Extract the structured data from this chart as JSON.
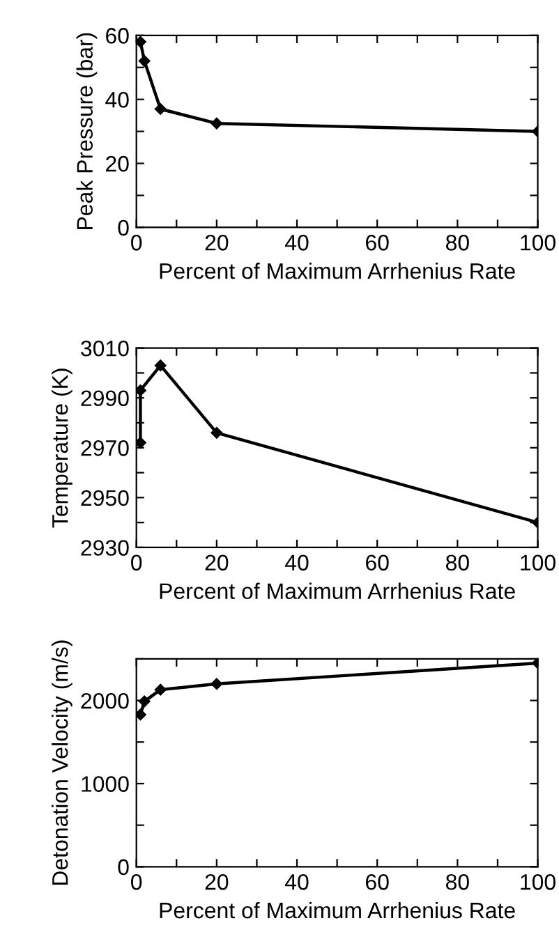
{
  "chart_data": [
    {
      "type": "line",
      "ylabel": "Peak Pressure (bar)",
      "xlabel": "Percent of Maximum Arrhenius Rate",
      "marker": "diamond",
      "line_style": "solid",
      "grid": false,
      "series": [
        {
          "color": "#000000",
          "x": [
            1,
            2,
            6,
            20,
            100
          ],
          "values": [
            58,
            52,
            37,
            32.5,
            30
          ]
        }
      ],
      "xlim": [
        0,
        100
      ],
      "xticks": [
        0,
        {
          "value": 10,
          "label": null
        },
        20,
        {
          "value": 30,
          "label": null
        },
        40,
        {
          "value": 50,
          "label": null
        },
        60,
        {
          "value": 70,
          "label": null
        },
        80,
        {
          "value": 90,
          "label": null
        },
        100
      ],
      "ylim": [
        0,
        60
      ],
      "yticks": [
        0,
        {
          "value": 10,
          "label": null
        },
        20,
        {
          "value": 30,
          "label": null
        },
        40,
        {
          "value": 50,
          "label": null
        },
        60
      ]
    },
    {
      "type": "line",
      "ylabel": "Temperature (K)",
      "xlabel": "Percent of Maximum Arrhenius Rate",
      "marker": "diamond",
      "line_style": "solid",
      "grid": false,
      "series": [
        {
          "color": "#000000",
          "x": [
            1,
            1,
            6,
            20,
            100
          ],
          "values": [
            2972,
            2993,
            3003,
            2976,
            2940
          ]
        }
      ],
      "xlim": [
        0,
        100
      ],
      "xticks": [
        0,
        {
          "value": 10,
          "label": null
        },
        20,
        {
          "value": 30,
          "label": null
        },
        40,
        {
          "value": 50,
          "label": null
        },
        60,
        {
          "value": 70,
          "label": null
        },
        80,
        {
          "value": 90,
          "label": null
        },
        100
      ],
      "ylim": [
        2930,
        3010
      ],
      "yticks": [
        2930,
        {
          "value": 2940,
          "label": null
        },
        2950,
        {
          "value": 2960,
          "label": null
        },
        2970,
        {
          "value": 2980,
          "label": null
        },
        2990,
        {
          "value": 3000,
          "label": null
        },
        3010
      ]
    },
    {
      "type": "line",
      "ylabel": "Detonation Velocity (m/s)",
      "xlabel": "Percent of Maximum Arrhenius Rate",
      "marker": "diamond",
      "line_style": "solid",
      "grid": false,
      "series": [
        {
          "color": "#000000",
          "x": [
            1,
            2,
            6,
            20,
            100
          ],
          "values": [
            1830,
            1990,
            2130,
            2200,
            2450
          ]
        }
      ],
      "xlim": [
        0,
        100
      ],
      "xticks": [
        0,
        {
          "value": 10,
          "label": null
        },
        20,
        {
          "value": 30,
          "label": null
        },
        40,
        {
          "value": 50,
          "label": null
        },
        60,
        {
          "value": 70,
          "label": null
        },
        80,
        {
          "value": 90,
          "label": null
        },
        100
      ],
      "ylim": [
        0,
        2500
      ],
      "yticks": [
        0,
        {
          "value": 500,
          "label": null
        },
        1000,
        {
          "value": 1500,
          "label": null
        },
        2000,
        {
          "value": 2500,
          "label": null
        }
      ]
    }
  ]
}
